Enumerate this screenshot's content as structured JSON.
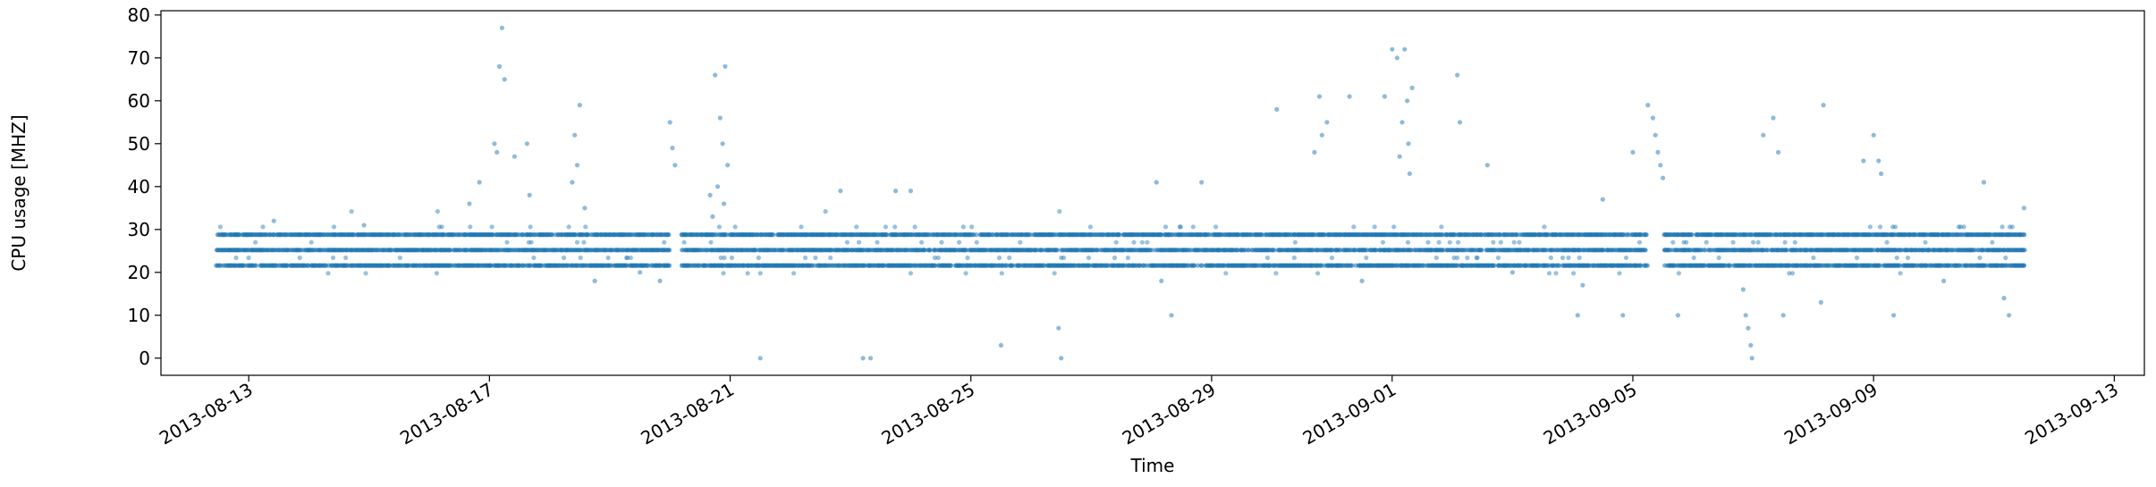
{
  "chart_data": {
    "type": "scatter",
    "title": "",
    "xlabel": "Time",
    "ylabel": "CPU usage [MHZ]",
    "xlim": [
      "2013-08-11T13:00",
      "2013-09-13T12:00"
    ],
    "ylim": [
      -4,
      81
    ],
    "x_ticks": [
      "2013-08-13",
      "2013-08-17",
      "2013-08-21",
      "2013-08-25",
      "2013-08-29",
      "2013-09-01",
      "2013-09-05",
      "2013-09-09",
      "2013-09-13"
    ],
    "y_ticks": [
      0,
      10,
      20,
      30,
      40,
      50,
      60,
      70,
      80
    ],
    "grid": false,
    "marker_color": "#1f77b4",
    "data_range": [
      "2013-08-12T11:00",
      "2013-09-11T12:00"
    ],
    "baseline_levels": [
      21.6,
      25.2,
      28.8
    ],
    "gaps": [
      [
        "2013-08-20T00:00",
        "2013-08-20T04:00"
      ],
      [
        "2013-09-05T06:00",
        "2013-09-05T12:00"
      ]
    ],
    "points": [
      [
        "2013-08-13T10:00",
        32
      ],
      [
        "2013-08-14T22:00",
        31
      ],
      [
        "2013-08-16T16:00",
        36
      ],
      [
        "2013-08-16T20:00",
        41
      ],
      [
        "2013-08-17T02:00",
        50
      ],
      [
        "2013-08-17T03:00",
        48
      ],
      [
        "2013-08-17T04:00",
        68
      ],
      [
        "2013-08-17T05:00",
        77
      ],
      [
        "2013-08-17T06:00",
        65
      ],
      [
        "2013-08-17T10:00",
        47
      ],
      [
        "2013-08-17T15:00",
        50
      ],
      [
        "2013-08-17T16:00",
        38
      ],
      [
        "2013-08-18T12:00",
        59
      ],
      [
        "2013-08-18T10:00",
        52
      ],
      [
        "2013-08-18T11:00",
        45
      ],
      [
        "2013-08-18T09:00",
        41
      ],
      [
        "2013-08-18T14:00",
        35
      ],
      [
        "2013-08-18T18:00",
        18
      ],
      [
        "2013-08-19T12:00",
        20
      ],
      [
        "2013-08-19T20:00",
        18
      ],
      [
        "2013-08-20T00:00",
        55
      ],
      [
        "2013-08-20T01:00",
        49
      ],
      [
        "2013-08-20T02:00",
        45
      ],
      [
        "2013-08-20T18:00",
        66
      ],
      [
        "2013-08-20T22:00",
        68
      ],
      [
        "2013-08-20T20:00",
        56
      ],
      [
        "2013-08-20T21:00",
        50
      ],
      [
        "2013-08-20T23:00",
        45
      ],
      [
        "2013-08-20T19:00",
        40
      ],
      [
        "2013-08-20T16:00",
        38
      ],
      [
        "2013-08-20T21:30",
        36
      ],
      [
        "2013-08-20T17:00",
        33
      ],
      [
        "2013-08-21T12:00",
        0
      ],
      [
        "2013-08-22T20:00",
        39
      ],
      [
        "2013-08-23T05:00",
        0
      ],
      [
        "2013-08-23T08:00",
        0
      ],
      [
        "2013-08-23T18:00",
        39
      ],
      [
        "2013-08-24T00:00",
        39
      ],
      [
        "2013-08-25T12:00",
        3
      ],
      [
        "2013-08-26T11:00",
        7
      ],
      [
        "2013-08-26T12:00",
        0
      ],
      [
        "2013-08-28T02:00",
        41
      ],
      [
        "2013-08-28T04:00",
        18
      ],
      [
        "2013-08-28T08:00",
        10
      ],
      [
        "2013-08-28T20:00",
        41
      ],
      [
        "2013-08-30T19:00",
        61
      ],
      [
        "2013-08-30T02:00",
        58
      ],
      [
        "2013-08-30T22:00",
        55
      ],
      [
        "2013-08-30T20:00",
        52
      ],
      [
        "2013-08-30T17:00",
        48
      ],
      [
        "2013-08-31T07:00",
        61
      ],
      [
        "2013-08-31T12:00",
        18
      ],
      [
        "2013-08-31T21:00",
        61
      ],
      [
        "2013-09-01T00:00",
        72
      ],
      [
        "2013-09-01T02:00",
        70
      ],
      [
        "2013-09-01T05:00",
        72
      ],
      [
        "2013-09-01T08:00",
        63
      ],
      [
        "2013-09-01T06:00",
        60
      ],
      [
        "2013-09-01T04:00",
        55
      ],
      [
        "2013-09-01T06:30",
        50
      ],
      [
        "2013-09-01T03:00",
        47
      ],
      [
        "2013-09-01T07:00",
        43
      ],
      [
        "2013-09-02T02:00",
        66
      ],
      [
        "2013-09-02T03:00",
        55
      ],
      [
        "2013-09-02T14:00",
        45
      ],
      [
        "2013-09-03T00:00",
        20
      ],
      [
        "2013-09-04T02:00",
        10
      ],
      [
        "2013-09-04T04:00",
        17
      ],
      [
        "2013-09-04T12:00",
        37
      ],
      [
        "2013-09-04T20:00",
        10
      ],
      [
        "2013-09-05T00:00",
        48
      ],
      [
        "2013-09-05T06:00",
        59
      ],
      [
        "2013-09-05T08:00",
        56
      ],
      [
        "2013-09-05T09:00",
        52
      ],
      [
        "2013-09-05T10:00",
        48
      ],
      [
        "2013-09-05T11:00",
        45
      ],
      [
        "2013-09-05T12:00",
        42
      ],
      [
        "2013-09-05T18:00",
        10
      ],
      [
        "2013-09-06T20:00",
        16
      ],
      [
        "2013-09-06T21:00",
        10
      ],
      [
        "2013-09-06T22:00",
        7
      ],
      [
        "2013-09-06T23:00",
        3
      ],
      [
        "2013-09-06T23:30",
        0
      ],
      [
        "2013-09-07T08:00",
        56
      ],
      [
        "2013-09-07T04:00",
        52
      ],
      [
        "2013-09-07T10:00",
        48
      ],
      [
        "2013-09-07T12:00",
        10
      ],
      [
        "2013-09-08T04:00",
        59
      ],
      [
        "2013-09-08T03:00",
        13
      ],
      [
        "2013-09-08T20:00",
        46
      ],
      [
        "2013-09-09T00:00",
        52
      ],
      [
        "2013-09-09T02:00",
        46
      ],
      [
        "2013-09-09T03:00",
        43
      ],
      [
        "2013-09-09T08:00",
        10
      ],
      [
        "2013-09-10T20:00",
        41
      ],
      [
        "2013-09-10T04:00",
        18
      ],
      [
        "2013-09-11T04:00",
        14
      ],
      [
        "2013-09-11T06:00",
        10
      ],
      [
        "2013-09-11T12:00",
        35
      ]
    ]
  }
}
